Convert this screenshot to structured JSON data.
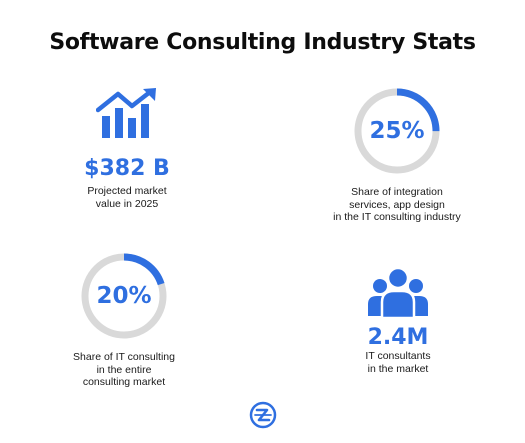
{
  "title": "Software Consulting Industry Stats",
  "colors": {
    "accent": "#2f6fe0",
    "ring_track": "#d9d9d9",
    "text": "#111111"
  },
  "stats": [
    {
      "id": "market-value",
      "icon": "growth-chart-icon",
      "value": "$382 B",
      "caption": [
        "Projected market",
        "value in 2025"
      ]
    },
    {
      "id": "integration-share",
      "value": "25%",
      "percent": 25,
      "caption": [
        "Share of integration",
        "services, app design",
        "in the IT consulting industry"
      ]
    },
    {
      "id": "it-consulting-share",
      "value": "20%",
      "percent": 20,
      "caption": [
        "Share of IT consulting",
        "in the entire",
        "consulting market"
      ]
    },
    {
      "id": "consultants-count",
      "icon": "people-group-icon",
      "value": "2.4M",
      "caption": [
        "IT consultants",
        "in the market"
      ]
    }
  ],
  "footer": {
    "logo_icon": "brand-logo-icon"
  }
}
